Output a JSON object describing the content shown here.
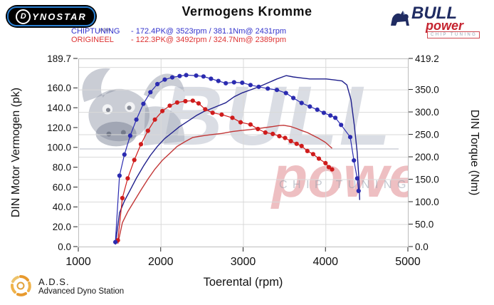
{
  "header": {
    "title": "Vermogens Kromme",
    "dynostar": {
      "first": "D",
      "rest": "YNOSTAR",
      "suffix": ".com"
    },
    "bull_logo": {
      "name": "BULL",
      "power": "power",
      "tagline": "CHIP TUNING"
    },
    "legend": [
      {
        "name": "CHIPTUNING",
        "value": "- 172.4PK@ 3523rpm / 381.1Nm@ 2431rpm",
        "color": "#3333cc"
      },
      {
        "name": "ORIGINEEL",
        "value": "- 122.3PK@ 3492rpm / 324.7Nm@ 2389rpm",
        "color": "#dd3333"
      }
    ]
  },
  "footer": {
    "ads_abbr": "A.D.S.",
    "ads_name": "Advanced Dyno Station"
  },
  "chart_data": {
    "type": "line",
    "title": "Vermogens Kromme",
    "xlabel": "Toerental (rpm)",
    "ylabel_left": "DIN Motor Vermogen (pk)",
    "ylabel_right": "DIN Torque (Nm)",
    "xlim": [
      1000,
      5000
    ],
    "ylim_left": [
      0,
      189.7
    ],
    "ylim_right": [
      0,
      419.2
    ],
    "grid": true,
    "x_ticks": [
      1000,
      2000,
      3000,
      4000,
      5000
    ],
    "x_tick_labels": [
      "1000",
      "2000",
      "3000",
      "4000",
      "5000"
    ],
    "left_ticks": [
      0,
      20,
      40,
      60,
      80,
      100,
      120,
      140,
      160,
      189.7
    ],
    "left_tick_labels": [
      "0.0",
      "20.0",
      "40.0",
      "60.0",
      "80.0",
      "100.0",
      "120.0",
      "140.0",
      "160.0",
      "189.7"
    ],
    "right_ticks": [
      0,
      50,
      100,
      150,
      200,
      250,
      300,
      350,
      419.2
    ],
    "right_tick_labels": [
      "0.0",
      "50.0",
      "100.0",
      "150.0",
      "200.0",
      "250.0",
      "300.0",
      "350.0",
      "419.2"
    ],
    "gridlines_nm": [
      50,
      100,
      150,
      200,
      250,
      300,
      350,
      400
    ],
    "watermark": {
      "big": "BULL",
      "mid": "power",
      "small": "CHIP TUNING"
    },
    "series": [
      {
        "name": "origineel_power_pk",
        "legend": "ORIGINEEL",
        "axis": "left",
        "unit": "pk",
        "color": "#c23636",
        "markers": false,
        "points": [
          [
            1480,
            3
          ],
          [
            1535,
            24
          ],
          [
            1600,
            35
          ],
          [
            1680,
            46
          ],
          [
            1760,
            57
          ],
          [
            1845,
            68
          ],
          [
            1930,
            78
          ],
          [
            2020,
            87
          ],
          [
            2110,
            94
          ],
          [
            2200,
            101
          ],
          [
            2300,
            106
          ],
          [
            2389,
            110
          ],
          [
            2460,
            111
          ],
          [
            2540,
            112
          ],
          [
            2630,
            113
          ],
          [
            2740,
            114
          ],
          [
            2870,
            116
          ],
          [
            2970,
            117
          ],
          [
            3090,
            118
          ],
          [
            3180,
            119
          ],
          [
            3270,
            120
          ],
          [
            3360,
            121
          ],
          [
            3440,
            122
          ],
          [
            3492,
            122.3
          ],
          [
            3580,
            121
          ],
          [
            3650,
            119
          ],
          [
            3710,
            117
          ],
          [
            3780,
            115
          ],
          [
            3850,
            112
          ],
          [
            3920,
            109
          ],
          [
            4000,
            105
          ],
          [
            4040,
            102
          ],
          [
            4080,
            99
          ]
        ]
      },
      {
        "name": "chiptuning_power_pk",
        "legend": "CHIPTUNING",
        "axis": "left",
        "unit": "pk",
        "color": "#1f1f8c",
        "markers": false,
        "points": [
          [
            1450,
            2
          ],
          [
            1500,
            34
          ],
          [
            1560,
            46
          ],
          [
            1630,
            57
          ],
          [
            1705,
            69
          ],
          [
            1790,
            81
          ],
          [
            1875,
            92
          ],
          [
            1960,
            101
          ],
          [
            2050,
            109
          ],
          [
            2140,
            115
          ],
          [
            2230,
            121
          ],
          [
            2340,
            127
          ],
          [
            2431,
            132
          ],
          [
            2520,
            136
          ],
          [
            2610,
            139
          ],
          [
            2700,
            142
          ],
          [
            2790,
            145
          ],
          [
            2890,
            151
          ],
          [
            2990,
            155
          ],
          [
            3090,
            158
          ],
          [
            3190,
            161
          ],
          [
            3300,
            165
          ],
          [
            3410,
            169
          ],
          [
            3523,
            172.4
          ],
          [
            3610,
            171
          ],
          [
            3710,
            170
          ],
          [
            3810,
            169
          ],
          [
            3910,
            169
          ],
          [
            4010,
            169
          ],
          [
            4110,
            168
          ],
          [
            4200,
            167
          ],
          [
            4260,
            163
          ],
          [
            4310,
            148
          ],
          [
            4350,
            122
          ],
          [
            4385,
            95
          ],
          [
            4405,
            70
          ],
          [
            4415,
            47
          ]
        ]
      },
      {
        "name": "origineel_torque_nm",
        "legend": "ORIGINEEL",
        "axis": "right",
        "unit": "Nm",
        "color": "#cf1c1c",
        "markers": true,
        "points": [
          [
            1480,
            14
          ],
          [
            1535,
            108
          ],
          [
            1600,
            152
          ],
          [
            1680,
            193
          ],
          [
            1760,
            228
          ],
          [
            1845,
            258
          ],
          [
            1930,
            283
          ],
          [
            2020,
            302
          ],
          [
            2110,
            314
          ],
          [
            2200,
            321
          ],
          [
            2300,
            324
          ],
          [
            2389,
            325
          ],
          [
            2460,
            319
          ],
          [
            2540,
            306
          ],
          [
            2630,
            298
          ],
          [
            2740,
            294
          ],
          [
            2870,
            287
          ],
          [
            2970,
            277
          ],
          [
            3090,
            272
          ],
          [
            3180,
            262
          ],
          [
            3270,
            254
          ],
          [
            3360,
            251
          ],
          [
            3440,
            246
          ],
          [
            3510,
            242
          ],
          [
            3580,
            235
          ],
          [
            3650,
            229
          ],
          [
            3710,
            224
          ],
          [
            3780,
            213
          ],
          [
            3850,
            206
          ],
          [
            3920,
            196
          ],
          [
            4000,
            186
          ],
          [
            4040,
            177
          ],
          [
            4080,
            172
          ]
        ]
      },
      {
        "name": "chiptuning_torque_nm",
        "legend": "CHIPTUNING",
        "axis": "right",
        "unit": "Nm",
        "color": "#2b2bb0",
        "markers": true,
        "points": [
          [
            1450,
            10
          ],
          [
            1500,
            158
          ],
          [
            1560,
            205
          ],
          [
            1630,
            247
          ],
          [
            1705,
            283
          ],
          [
            1790,
            318
          ],
          [
            1875,
            344
          ],
          [
            1960,
            362
          ],
          [
            2050,
            372
          ],
          [
            2140,
            377
          ],
          [
            2230,
            380
          ],
          [
            2310,
            382
          ],
          [
            2431,
            381
          ],
          [
            2520,
            379
          ],
          [
            2610,
            374
          ],
          [
            2700,
            369
          ],
          [
            2790,
            364
          ],
          [
            2890,
            366
          ],
          [
            2990,
            365
          ],
          [
            3090,
            360
          ],
          [
            3190,
            356
          ],
          [
            3300,
            352
          ],
          [
            3410,
            349
          ],
          [
            3520,
            342
          ],
          [
            3610,
            331
          ],
          [
            3710,
            320
          ],
          [
            3810,
            312
          ],
          [
            3900,
            305
          ],
          [
            3980,
            298
          ],
          [
            4060,
            292
          ],
          [
            4120,
            287
          ],
          [
            4190,
            271
          ],
          [
            4300,
            244
          ],
          [
            4345,
            192
          ],
          [
            4385,
            152
          ],
          [
            4402,
            124
          ]
        ]
      }
    ]
  }
}
